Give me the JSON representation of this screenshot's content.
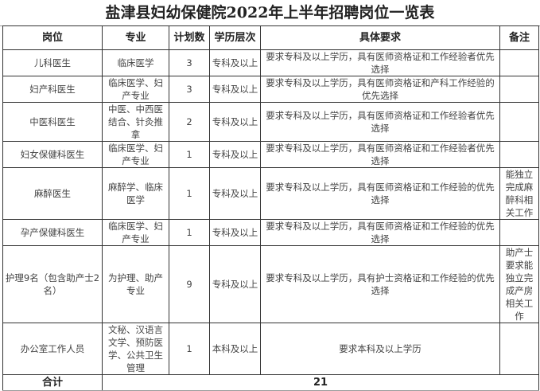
{
  "title": "盐津县妇幼保健院2022年上半年招聘岗位一览表",
  "headers": {
    "position": "岗位",
    "major": "专业",
    "count": "计划数",
    "education": "学历层次",
    "requirements": "具体要求",
    "remarks": "备注"
  },
  "rows": [
    {
      "position": "儿科医生",
      "major": "临床医学",
      "count": "3",
      "education": "专科及以上",
      "requirements": "要求专科及以上学历，具有医师资格证和工作经验者优先选择",
      "remarks": ""
    },
    {
      "position": "妇产科医生",
      "major": "临床医学、妇产专业",
      "count": "3",
      "education": "专科及以上",
      "requirements": "要求专科及以上学历，具有医师资格证和产科工作经验的优先选择",
      "remarks": ""
    },
    {
      "position": "中医科医生",
      "major": "中医、中西医结合、针灸推拿",
      "count": "2",
      "education": "专科及以上",
      "requirements": "要求专科及以上学历，具有医师资格证和工作经验者优先选择",
      "remarks": ""
    },
    {
      "position": "妇女保健科医生",
      "major": "临床医学、妇产专业",
      "count": "1",
      "education": "专科及以上",
      "requirements": "要求专科及以上学历，具有医师资格证和工作经验者优先选择",
      "remarks": ""
    },
    {
      "position": "麻醉医生",
      "major": "麻醉学、临床医学",
      "count": "1",
      "education": "专科及以上",
      "requirements": "要求专科及以上学历，具有医师资格证和工作经验的优先选择",
      "remarks": "能独立完成麻醉科相关工作"
    },
    {
      "position": "孕产保健科医生",
      "major": "临床医学、妇产专业",
      "count": "1",
      "education": "专科及以上",
      "requirements": "要求专科及以上学历，具有医师资格证和工作经验的优先选择",
      "remarks": ""
    },
    {
      "position": "护理9名（包含助产士2名）",
      "major": "为护理、助产专业",
      "count": "9",
      "education": "专科及以上",
      "requirements": "要求专科及以上学历，具有护士资格证和工作经验的优先选择",
      "remarks": "助产士要求能独立完成产房相关工作"
    },
    {
      "position": "办公室工作人员",
      "major": "文秘、汉语言文学、预防医学、公共卫生管理",
      "count": "1",
      "education": "本科及以上",
      "requirements": "要求本科及以上学历",
      "remarks": ""
    }
  ],
  "total": {
    "label": "合计",
    "value": "21"
  }
}
